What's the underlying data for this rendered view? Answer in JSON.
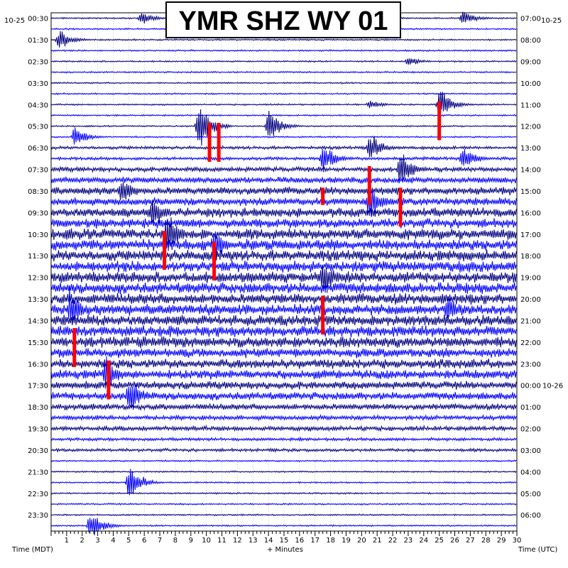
{
  "chart_data": {
    "type": "line",
    "title": "YMR SHZ WY 01",
    "xlabel": "+ Minutes",
    "left_axis_label": "Time (MDT)",
    "right_axis_label": "Time (UTC)",
    "left_date": "10-25",
    "right_date": "10-25",
    "midnight_date": "10-26",
    "xlim": [
      0,
      30
    ],
    "x_ticks": [
      "1",
      "2",
      "3",
      "4",
      "5",
      "6",
      "7",
      "8",
      "9",
      "10",
      "11",
      "12",
      "13",
      "14",
      "15",
      "16",
      "17",
      "18",
      "19",
      "20",
      "21",
      "22",
      "23",
      "24",
      "25",
      "26",
      "27",
      "28",
      "29",
      "30"
    ],
    "left_times": [
      "00:30",
      "01:30",
      "02:30",
      "03:30",
      "04:30",
      "05:30",
      "06:30",
      "07:30",
      "08:30",
      "09:30",
      "10:30",
      "11:30",
      "12:30",
      "13:30",
      "14:30",
      "15:30",
      "16:30",
      "17:30",
      "18:30",
      "19:30",
      "20:30",
      "21:30",
      "22:30",
      "23:30"
    ],
    "right_times": [
      "07:00",
      "08:00",
      "09:00",
      "10:00",
      "11:00",
      "12:00",
      "13:00",
      "14:00",
      "15:00",
      "16:00",
      "17:00",
      "18:00",
      "19:00",
      "20:00",
      "21:00",
      "22:00",
      "23:00",
      "00:00",
      "01:00",
      "02:00",
      "03:00",
      "04:00",
      "05:00",
      "06:00"
    ],
    "rows": 48,
    "row_interval_minutes": 30,
    "trace_colors": [
      "#000080",
      "#0000ff"
    ],
    "clip_color": "#ff0000",
    "grid": true,
    "trace_amplitude_by_row": [
      1,
      1,
      1,
      1,
      1,
      1,
      1,
      1,
      1,
      1,
      1,
      1,
      2,
      2,
      3,
      4,
      5,
      5,
      6,
      6,
      7,
      7,
      7,
      7,
      7,
      7,
      7,
      7,
      7,
      7,
      7,
      6,
      6,
      6,
      5,
      5,
      4,
      3,
      3,
      2,
      2,
      1,
      1,
      1,
      1,
      1,
      1,
      1
    ],
    "events": [
      {
        "row": 0,
        "minute": 5.8,
        "amp": 3
      },
      {
        "row": 0,
        "minute": 26.5,
        "amp": 3
      },
      {
        "row": 2,
        "minute": 0.5,
        "amp": 4
      },
      {
        "row": 4,
        "minute": 23.0,
        "amp": 2
      },
      {
        "row": 8,
        "minute": 20.5,
        "amp": 2
      },
      {
        "row": 8,
        "minute": 25.0,
        "amp": 6
      },
      {
        "row": 10,
        "minute": 9.5,
        "amp": 10
      },
      {
        "row": 10,
        "minute": 14.0,
        "amp": 6
      },
      {
        "row": 11,
        "minute": 1.5,
        "amp": 4
      },
      {
        "row": 12,
        "minute": 20.5,
        "amp": 6
      },
      {
        "row": 13,
        "minute": 17.5,
        "amp": 6
      },
      {
        "row": 13,
        "minute": 26.5,
        "amp": 5
      },
      {
        "row": 14,
        "minute": 22.5,
        "amp": 8
      },
      {
        "row": 16,
        "minute": 4.5,
        "amp": 6
      },
      {
        "row": 17,
        "minute": 20.5,
        "amp": 8
      },
      {
        "row": 18,
        "minute": 6.5,
        "amp": 7
      },
      {
        "row": 20,
        "minute": 7.5,
        "amp": 9
      },
      {
        "row": 21,
        "minute": 10.5,
        "amp": 7
      },
      {
        "row": 24,
        "minute": 17.5,
        "amp": 8
      },
      {
        "row": 27,
        "minute": 1.2,
        "amp": 8
      },
      {
        "row": 27,
        "minute": 25.5,
        "amp": 6
      },
      {
        "row": 33,
        "minute": 3.5,
        "amp": 7
      },
      {
        "row": 35,
        "minute": 5.0,
        "amp": 8
      },
      {
        "row": 43,
        "minute": 5.0,
        "amp": 7
      },
      {
        "row": 47,
        "minute": 2.5,
        "amp": 6
      }
    ],
    "clipped_segments": [
      {
        "row": 10,
        "minute": 10.2,
        "rows_spanned": 4
      },
      {
        "row": 10,
        "minute": 10.8,
        "rows_spanned": 4
      },
      {
        "row": 8,
        "minute": 25.0,
        "rows_spanned": 4
      },
      {
        "row": 14,
        "minute": 20.5,
        "rows_spanned": 4
      },
      {
        "row": 16,
        "minute": 17.5,
        "rows_spanned": 2
      },
      {
        "row": 16,
        "minute": 22.5,
        "rows_spanned": 4
      },
      {
        "row": 20,
        "minute": 7.3,
        "rows_spanned": 4
      },
      {
        "row": 21,
        "minute": 10.5,
        "rows_spanned": 4
      },
      {
        "row": 26,
        "minute": 17.5,
        "rows_spanned": 4
      },
      {
        "row": 29,
        "minute": 1.5,
        "rows_spanned": 4
      },
      {
        "row": 32,
        "minute": 3.7,
        "rows_spanned": 4
      }
    ]
  }
}
